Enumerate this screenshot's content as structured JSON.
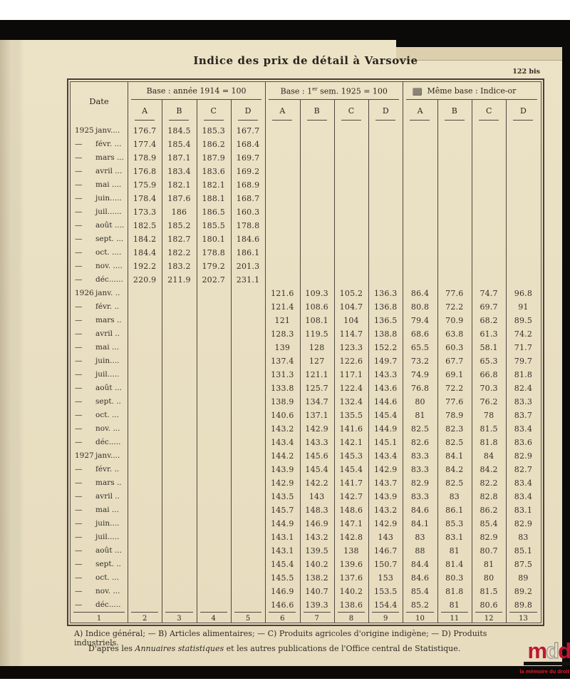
{
  "page": {
    "title": "Indice des prix de détail à Varsovie",
    "folio": "122 bis"
  },
  "table": {
    "date_header": "Date",
    "sub_columns": [
      "A",
      "B",
      "C",
      "D"
    ],
    "groups": [
      {
        "title": "Base : année 1914 = 100"
      },
      {
        "title_prefix": "Base : 1",
        "title_sup": "er",
        "title_suffix": " sem. 1925 = 100"
      },
      {
        "title": "Même base : Indice-or"
      }
    ],
    "column_numbers": [
      "1",
      "2",
      "3",
      "4",
      "5",
      "6",
      "7",
      "8",
      "9",
      "10",
      "11",
      "12",
      "13"
    ],
    "rows": [
      {
        "prefix": "1925",
        "month": "janv....",
        "values": [
          "176.7",
          "184.5",
          "185.3",
          "167.7",
          "",
          "",
          "",
          "",
          "",
          "",
          "",
          ""
        ]
      },
      {
        "prefix": "—",
        "month": "févr. ...",
        "values": [
          "177.4",
          "185.4",
          "186.2",
          "168.4",
          "",
          "",
          "",
          "",
          "",
          "",
          "",
          ""
        ]
      },
      {
        "prefix": "—",
        "month": "mars ...",
        "values": [
          "178.9",
          "187.1",
          "187.9",
          "169.7",
          "",
          "",
          "",
          "",
          "",
          "",
          "",
          ""
        ]
      },
      {
        "prefix": "—",
        "month": "avril ...",
        "values": [
          "176.8",
          "183.4",
          "183.6",
          "169.2",
          "",
          "",
          "",
          "",
          "",
          "",
          "",
          ""
        ]
      },
      {
        "prefix": "—",
        "month": "mai ....",
        "values": [
          "175.9",
          "182.1",
          "182.1",
          "168.9",
          "",
          "",
          "",
          "",
          "",
          "",
          "",
          ""
        ]
      },
      {
        "prefix": "—",
        "month": "juin.....",
        "values": [
          "178.4",
          "187.6",
          "188.1",
          "168.7",
          "",
          "",
          "",
          "",
          "",
          "",
          "",
          ""
        ]
      },
      {
        "prefix": "—",
        "month": "juil......",
        "values": [
          "173.3",
          "186",
          "186.5",
          "160.3",
          "",
          "",
          "",
          "",
          "",
          "",
          "",
          ""
        ]
      },
      {
        "prefix": "—",
        "month": "août ....",
        "values": [
          "182.5",
          "185.2",
          "185.5",
          "178.8",
          "",
          "",
          "",
          "",
          "",
          "",
          "",
          ""
        ]
      },
      {
        "prefix": "—",
        "month": "sept. ...",
        "values": [
          "184.2",
          "182.7",
          "180.1",
          "184.6",
          "",
          "",
          "",
          "",
          "",
          "",
          "",
          ""
        ]
      },
      {
        "prefix": "—",
        "month": "oct. ....",
        "values": [
          "184.4",
          "182.2",
          "178.8",
          "186.1",
          "",
          "",
          "",
          "",
          "",
          "",
          "",
          ""
        ]
      },
      {
        "prefix": "—",
        "month": "nov. ....",
        "values": [
          "192.2",
          "183.2",
          "179.2",
          "201.3",
          "",
          "",
          "",
          "",
          "",
          "",
          "",
          ""
        ]
      },
      {
        "prefix": "—",
        "month": "déc......",
        "values": [
          "220.9",
          "211.9",
          "202.7",
          "231.1",
          "",
          "",
          "",
          "",
          "",
          "",
          "",
          ""
        ]
      },
      {
        "prefix": "1926",
        "month": "janv. ..",
        "values": [
          "",
          "",
          "",
          "",
          "121.6",
          "109.3",
          "105.2",
          "136.3",
          "86.4",
          "77.6",
          "74.7",
          "96.8"
        ]
      },
      {
        "prefix": "—",
        "month": "févr. ..",
        "values": [
          "",
          "",
          "",
          "",
          "121.4",
          "108.6",
          "104.7",
          "136.8",
          "80.8",
          "72.2",
          "69.7",
          "91"
        ]
      },
      {
        "prefix": "—",
        "month": "mars ..",
        "values": [
          "",
          "",
          "",
          "",
          "121",
          "108.1",
          "104",
          "136.5",
          "79.4",
          "70.9",
          "68.2",
          "89.5"
        ]
      },
      {
        "prefix": "—",
        "month": "avril ..",
        "values": [
          "",
          "",
          "",
          "",
          "128.3",
          "119.5",
          "114.7",
          "138.8",
          "68.6",
          "63.8",
          "61.3",
          "74.2"
        ]
      },
      {
        "prefix": "—",
        "month": "mai ...",
        "values": [
          "",
          "",
          "",
          "",
          "139",
          "128",
          "123.3",
          "152.2",
          "65.5",
          "60.3",
          "58.1",
          "71.7"
        ]
      },
      {
        "prefix": "—",
        "month": "juin....",
        "values": [
          "",
          "",
          "",
          "",
          "137.4",
          "127",
          "122.6",
          "149.7",
          "73.2",
          "67.7",
          "65.3",
          "79.7"
        ]
      },
      {
        "prefix": "—",
        "month": "juil.....",
        "values": [
          "",
          "",
          "",
          "",
          "131.3",
          "121.1",
          "117.1",
          "143.3",
          "74.9",
          "69.1",
          "66.8",
          "81.8"
        ]
      },
      {
        "prefix": "—",
        "month": "août ...",
        "values": [
          "",
          "",
          "",
          "",
          "133.8",
          "125.7",
          "122.4",
          "143.6",
          "76.8",
          "72.2",
          "70.3",
          "82.4"
        ]
      },
      {
        "prefix": "—",
        "month": "sept. ..",
        "values": [
          "",
          "",
          "",
          "",
          "138.9",
          "134.7",
          "132.4",
          "144.6",
          "80",
          "77.6",
          "76.2",
          "83.3"
        ]
      },
      {
        "prefix": "—",
        "month": "oct. ...",
        "values": [
          "",
          "",
          "",
          "",
          "140.6",
          "137.1",
          "135.5",
          "145.4",
          "81",
          "78.9",
          "78",
          "83.7"
        ]
      },
      {
        "prefix": "—",
        "month": "nov. ...",
        "values": [
          "",
          "",
          "",
          "",
          "143.2",
          "142.9",
          "141.6",
          "144.9",
          "82.5",
          "82.3",
          "81.5",
          "83.4"
        ]
      },
      {
        "prefix": "—",
        "month": "déc.....",
        "values": [
          "",
          "",
          "",
          "",
          "143.4",
          "143.3",
          "142.1",
          "145.1",
          "82.6",
          "82.5",
          "81.8",
          "83.6"
        ]
      },
      {
        "prefix": "1927",
        "month": "janv....",
        "values": [
          "",
          "",
          "",
          "",
          "144.2",
          "145.6",
          "145.3",
          "143.4",
          "83.3",
          "84.1",
          "84",
          "82.9"
        ]
      },
      {
        "prefix": "—",
        "month": "févr. ..",
        "values": [
          "",
          "",
          "",
          "",
          "143.9",
          "145.4",
          "145.4",
          "142.9",
          "83.3",
          "84.2",
          "84.2",
          "82.7"
        ]
      },
      {
        "prefix": "—",
        "month": "mars ..",
        "values": [
          "",
          "",
          "",
          "",
          "142.9",
          "142.2",
          "141.7",
          "143.7",
          "82.9",
          "82.5",
          "82.2",
          "83.4"
        ]
      },
      {
        "prefix": "—",
        "month": "avril ..",
        "values": [
          "",
          "",
          "",
          "",
          "143.5",
          "143",
          "142.7",
          "143.9",
          "83.3",
          "83",
          "82.8",
          "83.4"
        ]
      },
      {
        "prefix": "—",
        "month": "mai ...",
        "values": [
          "",
          "",
          "",
          "",
          "145.7",
          "148.3",
          "148.6",
          "143.2",
          "84.6",
          "86.1",
          "86.2",
          "83.1"
        ]
      },
      {
        "prefix": "—",
        "month": "juin....",
        "values": [
          "",
          "",
          "",
          "",
          "144.9",
          "146.9",
          "147.1",
          "142.9",
          "84.1",
          "85.3",
          "85.4",
          "82.9"
        ]
      },
      {
        "prefix": "—",
        "month": "juil.....",
        "values": [
          "",
          "",
          "",
          "",
          "143.1",
          "143.2",
          "142.8",
          "143",
          "83",
          "83.1",
          "82.9",
          "83"
        ]
      },
      {
        "prefix": "—",
        "month": "août ...",
        "values": [
          "",
          "",
          "",
          "",
          "143.1",
          "139.5",
          "138",
          "146.7",
          "88",
          "81",
          "80.7",
          "85.1"
        ]
      },
      {
        "prefix": "—",
        "month": "sept. ..",
        "values": [
          "",
          "",
          "",
          "",
          "145.4",
          "140.2",
          "139.6",
          "150.7",
          "84.4",
          "81.4",
          "81",
          "87.5"
        ]
      },
      {
        "prefix": "—",
        "month": "oct. ...",
        "values": [
          "",
          "",
          "",
          "",
          "145.5",
          "138.2",
          "137.6",
          "153",
          "84.6",
          "80.3",
          "80",
          "89"
        ]
      },
      {
        "prefix": "—",
        "month": "nov. ...",
        "values": [
          "",
          "",
          "",
          "",
          "146.9",
          "140.7",
          "140.2",
          "153.5",
          "85.4",
          "81.8",
          "81.5",
          "89.2"
        ]
      },
      {
        "prefix": "—",
        "month": "déc.....",
        "values": [
          "",
          "",
          "",
          "",
          "146.6",
          "139.3",
          "138.6",
          "154.4",
          "85.2",
          "81",
          "80.6",
          "89.8"
        ]
      }
    ]
  },
  "footnotes": {
    "line1": "A) Indice général; — B) Articles alimentaires; — C) Produits agricoles d'origine indigène; — D) Produits industriels.",
    "line2_prefix": "D'après les ",
    "line2_italic": "Annuaires statistiques",
    "line2_suffix": " et les autres publications de l'Office central de Statistique."
  },
  "watermark": {
    "letter1": "m",
    "letter2": "d",
    "letter3": "d",
    "tagline": "la mémoire du droit",
    "red": "#c21530",
    "outline_gray": "#96918a"
  }
}
